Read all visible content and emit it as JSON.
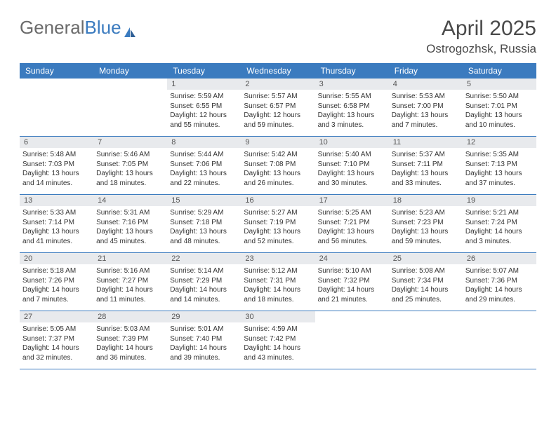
{
  "logo": {
    "text_gray": "General",
    "text_blue": "Blue"
  },
  "title": "April 2025",
  "location": "Ostrogozhsk, Russia",
  "colors": {
    "header_bg": "#3b7bbf",
    "header_text": "#ffffff",
    "daynum_bg": "#e8eaed",
    "border": "#3b7bbf",
    "text": "#333333",
    "title_text": "#4a4a4a"
  },
  "day_names": [
    "Sunday",
    "Monday",
    "Tuesday",
    "Wednesday",
    "Thursday",
    "Friday",
    "Saturday"
  ],
  "weeks": [
    [
      {
        "n": "",
        "sr": "",
        "ss": "",
        "dl": ""
      },
      {
        "n": "",
        "sr": "",
        "ss": "",
        "dl": ""
      },
      {
        "n": "1",
        "sr": "Sunrise: 5:59 AM",
        "ss": "Sunset: 6:55 PM",
        "dl": "Daylight: 12 hours and 55 minutes."
      },
      {
        "n": "2",
        "sr": "Sunrise: 5:57 AM",
        "ss": "Sunset: 6:57 PM",
        "dl": "Daylight: 12 hours and 59 minutes."
      },
      {
        "n": "3",
        "sr": "Sunrise: 5:55 AM",
        "ss": "Sunset: 6:58 PM",
        "dl": "Daylight: 13 hours and 3 minutes."
      },
      {
        "n": "4",
        "sr": "Sunrise: 5:53 AM",
        "ss": "Sunset: 7:00 PM",
        "dl": "Daylight: 13 hours and 7 minutes."
      },
      {
        "n": "5",
        "sr": "Sunrise: 5:50 AM",
        "ss": "Sunset: 7:01 PM",
        "dl": "Daylight: 13 hours and 10 minutes."
      }
    ],
    [
      {
        "n": "6",
        "sr": "Sunrise: 5:48 AM",
        "ss": "Sunset: 7:03 PM",
        "dl": "Daylight: 13 hours and 14 minutes."
      },
      {
        "n": "7",
        "sr": "Sunrise: 5:46 AM",
        "ss": "Sunset: 7:05 PM",
        "dl": "Daylight: 13 hours and 18 minutes."
      },
      {
        "n": "8",
        "sr": "Sunrise: 5:44 AM",
        "ss": "Sunset: 7:06 PM",
        "dl": "Daylight: 13 hours and 22 minutes."
      },
      {
        "n": "9",
        "sr": "Sunrise: 5:42 AM",
        "ss": "Sunset: 7:08 PM",
        "dl": "Daylight: 13 hours and 26 minutes."
      },
      {
        "n": "10",
        "sr": "Sunrise: 5:40 AM",
        "ss": "Sunset: 7:10 PM",
        "dl": "Daylight: 13 hours and 30 minutes."
      },
      {
        "n": "11",
        "sr": "Sunrise: 5:37 AM",
        "ss": "Sunset: 7:11 PM",
        "dl": "Daylight: 13 hours and 33 minutes."
      },
      {
        "n": "12",
        "sr": "Sunrise: 5:35 AM",
        "ss": "Sunset: 7:13 PM",
        "dl": "Daylight: 13 hours and 37 minutes."
      }
    ],
    [
      {
        "n": "13",
        "sr": "Sunrise: 5:33 AM",
        "ss": "Sunset: 7:14 PM",
        "dl": "Daylight: 13 hours and 41 minutes."
      },
      {
        "n": "14",
        "sr": "Sunrise: 5:31 AM",
        "ss": "Sunset: 7:16 PM",
        "dl": "Daylight: 13 hours and 45 minutes."
      },
      {
        "n": "15",
        "sr": "Sunrise: 5:29 AM",
        "ss": "Sunset: 7:18 PM",
        "dl": "Daylight: 13 hours and 48 minutes."
      },
      {
        "n": "16",
        "sr": "Sunrise: 5:27 AM",
        "ss": "Sunset: 7:19 PM",
        "dl": "Daylight: 13 hours and 52 minutes."
      },
      {
        "n": "17",
        "sr": "Sunrise: 5:25 AM",
        "ss": "Sunset: 7:21 PM",
        "dl": "Daylight: 13 hours and 56 minutes."
      },
      {
        "n": "18",
        "sr": "Sunrise: 5:23 AM",
        "ss": "Sunset: 7:23 PM",
        "dl": "Daylight: 13 hours and 59 minutes."
      },
      {
        "n": "19",
        "sr": "Sunrise: 5:21 AM",
        "ss": "Sunset: 7:24 PM",
        "dl": "Daylight: 14 hours and 3 minutes."
      }
    ],
    [
      {
        "n": "20",
        "sr": "Sunrise: 5:18 AM",
        "ss": "Sunset: 7:26 PM",
        "dl": "Daylight: 14 hours and 7 minutes."
      },
      {
        "n": "21",
        "sr": "Sunrise: 5:16 AM",
        "ss": "Sunset: 7:27 PM",
        "dl": "Daylight: 14 hours and 11 minutes."
      },
      {
        "n": "22",
        "sr": "Sunrise: 5:14 AM",
        "ss": "Sunset: 7:29 PM",
        "dl": "Daylight: 14 hours and 14 minutes."
      },
      {
        "n": "23",
        "sr": "Sunrise: 5:12 AM",
        "ss": "Sunset: 7:31 PM",
        "dl": "Daylight: 14 hours and 18 minutes."
      },
      {
        "n": "24",
        "sr": "Sunrise: 5:10 AM",
        "ss": "Sunset: 7:32 PM",
        "dl": "Daylight: 14 hours and 21 minutes."
      },
      {
        "n": "25",
        "sr": "Sunrise: 5:08 AM",
        "ss": "Sunset: 7:34 PM",
        "dl": "Daylight: 14 hours and 25 minutes."
      },
      {
        "n": "26",
        "sr": "Sunrise: 5:07 AM",
        "ss": "Sunset: 7:36 PM",
        "dl": "Daylight: 14 hours and 29 minutes."
      }
    ],
    [
      {
        "n": "27",
        "sr": "Sunrise: 5:05 AM",
        "ss": "Sunset: 7:37 PM",
        "dl": "Daylight: 14 hours and 32 minutes."
      },
      {
        "n": "28",
        "sr": "Sunrise: 5:03 AM",
        "ss": "Sunset: 7:39 PM",
        "dl": "Daylight: 14 hours and 36 minutes."
      },
      {
        "n": "29",
        "sr": "Sunrise: 5:01 AM",
        "ss": "Sunset: 7:40 PM",
        "dl": "Daylight: 14 hours and 39 minutes."
      },
      {
        "n": "30",
        "sr": "Sunrise: 4:59 AM",
        "ss": "Sunset: 7:42 PM",
        "dl": "Daylight: 14 hours and 43 minutes."
      },
      {
        "n": "",
        "sr": "",
        "ss": "",
        "dl": ""
      },
      {
        "n": "",
        "sr": "",
        "ss": "",
        "dl": ""
      },
      {
        "n": "",
        "sr": "",
        "ss": "",
        "dl": ""
      }
    ]
  ]
}
